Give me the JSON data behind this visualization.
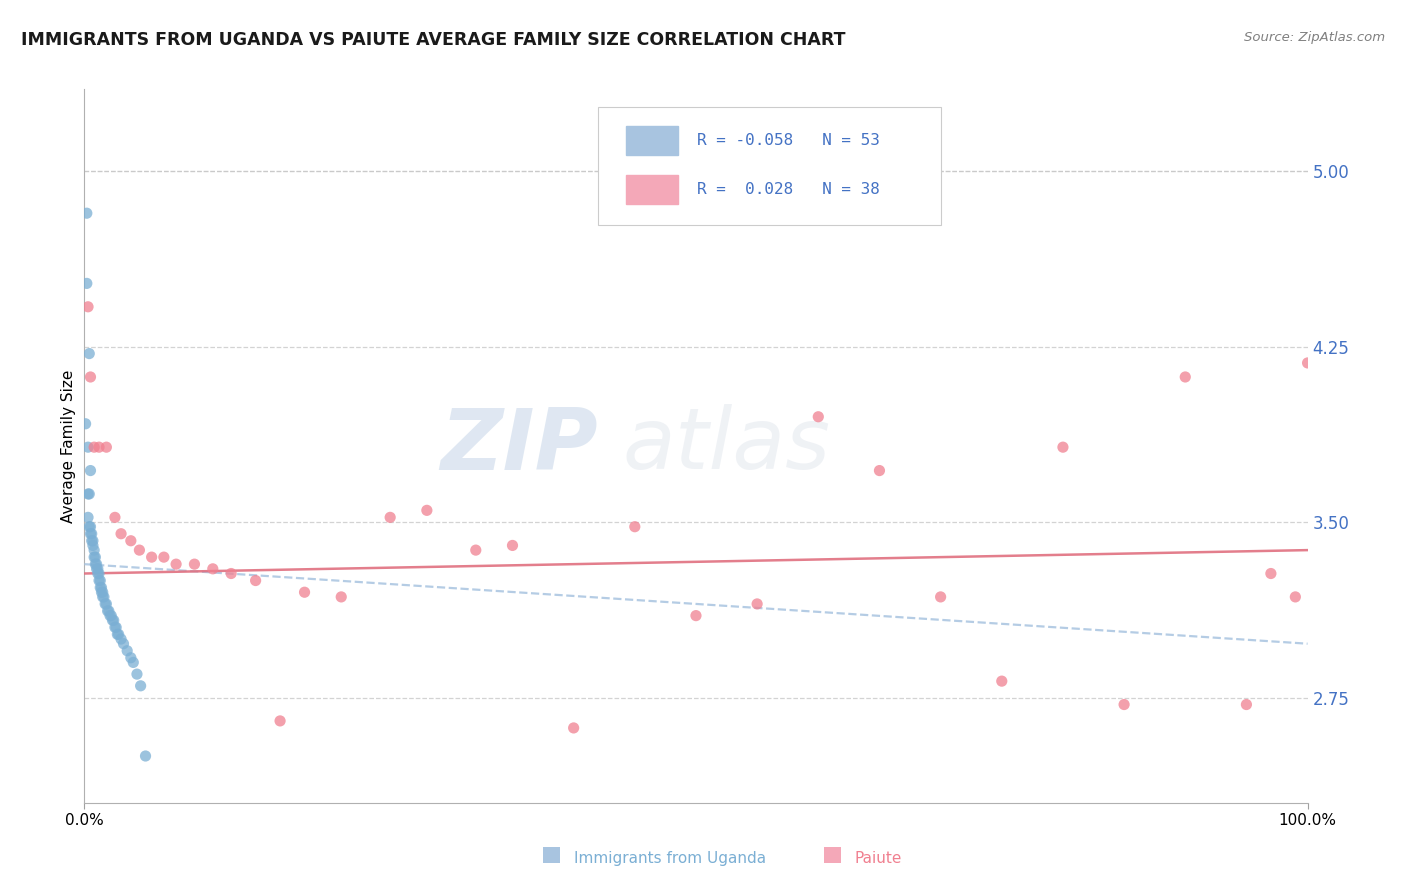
{
  "title": "IMMIGRANTS FROM UGANDA VS PAIUTE AVERAGE FAMILY SIZE CORRELATION CHART",
  "source_text": "Source: ZipAtlas.com",
  "ylabel": "Average Family Size",
  "legend_label1": "Immigrants from Uganda",
  "legend_label2": "Paiute",
  "r1": "-0.058",
  "n1": "53",
  "r2": "0.028",
  "n2": "38",
  "color_uganda_fill": "#a8c4e0",
  "color_paiute_fill": "#f4a8b8",
  "color_uganda_dot": "#7bafd4",
  "color_paiute_dot": "#f08090",
  "color_line_uganda": "#a8c4e0",
  "color_line_paiute": "#e07080",
  "color_right_axis": "#4472c4",
  "yticks_right": [
    2.75,
    3.5,
    4.25,
    5.0
  ],
  "ylim": [
    2.3,
    5.35
  ],
  "xlim": [
    0.0,
    1.0
  ],
  "watermark_zip": "ZIP",
  "watermark_atlas": "atlas",
  "uganda_x": [
    0.002,
    0.004,
    0.001,
    0.002,
    0.003,
    0.005,
    0.003,
    0.004,
    0.003,
    0.004,
    0.005,
    0.005,
    0.006,
    0.006,
    0.007,
    0.007,
    0.008,
    0.008,
    0.009,
    0.009,
    0.01,
    0.01,
    0.011,
    0.011,
    0.012,
    0.012,
    0.013,
    0.013,
    0.014,
    0.014,
    0.015,
    0.015,
    0.016,
    0.017,
    0.018,
    0.019,
    0.02,
    0.021,
    0.022,
    0.023,
    0.024,
    0.025,
    0.026,
    0.027,
    0.028,
    0.03,
    0.032,
    0.035,
    0.038,
    0.04,
    0.043,
    0.046,
    0.05
  ],
  "uganda_y": [
    4.82,
    4.22,
    3.92,
    4.52,
    3.82,
    3.72,
    3.62,
    3.62,
    3.52,
    3.48,
    3.48,
    3.45,
    3.45,
    3.42,
    3.42,
    3.4,
    3.38,
    3.35,
    3.35,
    3.32,
    3.32,
    3.3,
    3.3,
    3.28,
    3.28,
    3.25,
    3.25,
    3.22,
    3.22,
    3.2,
    3.2,
    3.18,
    3.18,
    3.15,
    3.15,
    3.12,
    3.12,
    3.1,
    3.1,
    3.08,
    3.08,
    3.05,
    3.05,
    3.02,
    3.02,
    3.0,
    2.98,
    2.95,
    2.92,
    2.9,
    2.85,
    2.8,
    2.5
  ],
  "paiute_x": [
    0.003,
    0.005,
    0.008,
    0.012,
    0.018,
    0.025,
    0.03,
    0.038,
    0.045,
    0.055,
    0.065,
    0.075,
    0.09,
    0.105,
    0.12,
    0.14,
    0.16,
    0.18,
    0.21,
    0.25,
    0.28,
    0.32,
    0.35,
    0.4,
    0.45,
    0.5,
    0.55,
    0.6,
    0.65,
    0.7,
    0.75,
    0.8,
    0.85,
    0.9,
    0.95,
    0.97,
    0.99,
    1.0
  ],
  "paiute_y": [
    4.42,
    4.12,
    3.82,
    3.82,
    3.82,
    3.52,
    3.45,
    3.42,
    3.38,
    3.35,
    3.35,
    3.32,
    3.32,
    3.3,
    3.28,
    3.25,
    2.65,
    3.2,
    3.18,
    3.52,
    3.55,
    3.38,
    3.4,
    2.62,
    3.48,
    3.1,
    3.15,
    3.95,
    3.72,
    3.18,
    2.82,
    3.82,
    2.72,
    4.12,
    2.72,
    3.28,
    3.18,
    4.18
  ],
  "uganda_trend_x": [
    0.0,
    1.0
  ],
  "uganda_trend_y": [
    3.32,
    2.98
  ],
  "paiute_trend_x": [
    0.0,
    1.0
  ],
  "paiute_trend_y": [
    3.28,
    3.38
  ]
}
